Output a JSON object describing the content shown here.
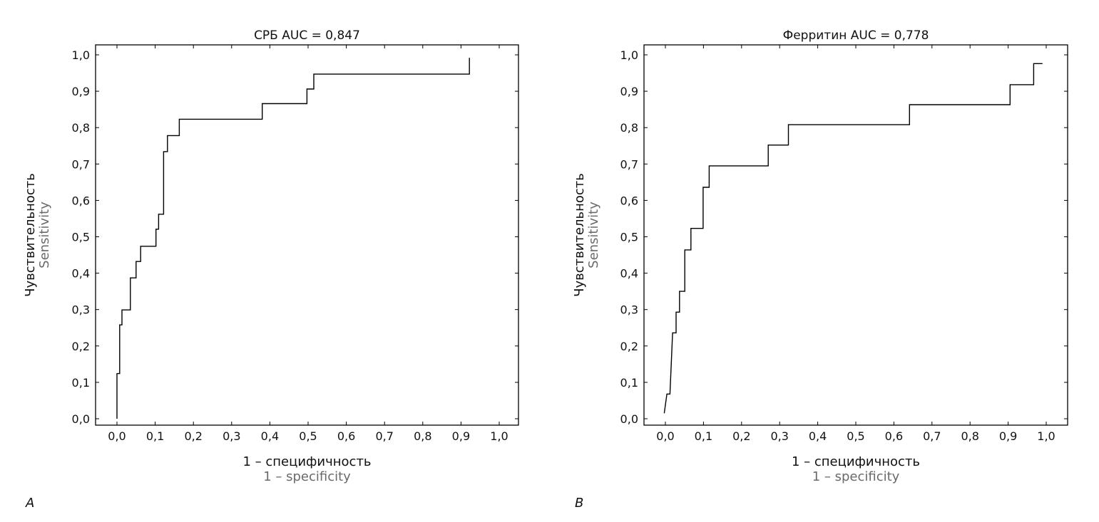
{
  "chart_data": [
    {
      "panel_label": "A",
      "type": "line",
      "title": "СРБ AUC = 0,847",
      "xlabel": "1 – специфичность",
      "xlabel_en": "1 – specificity",
      "ylabel": "Чувствительность",
      "ylabel_en": "Sensitivity",
      "xlim": [
        0,
        1
      ],
      "ylim": [
        0,
        1
      ],
      "xticks": [
        "0,0",
        "0,1",
        "0,2",
        "0,3",
        "0,4",
        "0,5",
        "0,6",
        "0,7",
        "0,8",
        "0,9",
        "1,0"
      ],
      "yticks": [
        "0,0",
        "0,1",
        "0,2",
        "0,3",
        "0,4",
        "0,5",
        "0,6",
        "0,7",
        "0,8",
        "0,9",
        "1,0"
      ],
      "grid": false,
      "series": [
        {
          "name": "СРБ",
          "points": [
            [
              0,
              0
            ],
            [
              0,
              0.124
            ],
            [
              0.007,
              0.124
            ],
            [
              0.007,
              0.258
            ],
            [
              0.013,
              0.258
            ],
            [
              0.013,
              0.299
            ],
            [
              0.035,
              0.299
            ],
            [
              0.035,
              0.387
            ],
            [
              0.05,
              0.387
            ],
            [
              0.05,
              0.432
            ],
            [
              0.062,
              0.432
            ],
            [
              0.062,
              0.474
            ],
            [
              0.102,
              0.474
            ],
            [
              0.102,
              0.521
            ],
            [
              0.109,
              0.521
            ],
            [
              0.109,
              0.562
            ],
            [
              0.122,
              0.562
            ],
            [
              0.122,
              0.734
            ],
            [
              0.132,
              0.734
            ],
            [
              0.132,
              0.778
            ],
            [
              0.163,
              0.778
            ],
            [
              0.163,
              0.823
            ],
            [
              0.38,
              0.823
            ],
            [
              0.38,
              0.866
            ],
            [
              0.497,
              0.866
            ],
            [
              0.497,
              0.906
            ],
            [
              0.515,
              0.906
            ],
            [
              0.515,
              0.947
            ],
            [
              0.922,
              0.947
            ],
            [
              0.922,
              0.992
            ]
          ]
        }
      ]
    },
    {
      "panel_label": "B",
      "type": "line",
      "title": "Ферритин AUC = 0,778",
      "xlabel": "1 – специфичность",
      "xlabel_en": "1 – specificity",
      "ylabel": "Чувствительность",
      "ylabel_en": "Sensitivity",
      "xlim": [
        0,
        1
      ],
      "ylim": [
        0,
        1
      ],
      "xticks": [
        "0,0",
        "0,1",
        "0,2",
        "0,3",
        "0,4",
        "0,5",
        "0,6",
        "0,7",
        "0,8",
        "0,9",
        "1,0"
      ],
      "yticks": [
        "0,0",
        "0,1",
        "0,2",
        "0,3",
        "0,4",
        "0,5",
        "0,6",
        "0,7",
        "0,8",
        "0,9",
        "1,0"
      ],
      "grid": false,
      "series": [
        {
          "name": "Ферритин",
          "points": [
            [
              -0.003,
              0.015
            ],
            [
              0.004,
              0.068
            ],
            [
              0.012,
              0.068
            ],
            [
              0.019,
              0.236
            ],
            [
              0.028,
              0.236
            ],
            [
              0.028,
              0.293
            ],
            [
              0.037,
              0.293
            ],
            [
              0.037,
              0.35
            ],
            [
              0.051,
              0.35
            ],
            [
              0.051,
              0.464
            ],
            [
              0.067,
              0.464
            ],
            [
              0.067,
              0.523
            ],
            [
              0.099,
              0.523
            ],
            [
              0.099,
              0.636
            ],
            [
              0.115,
              0.636
            ],
            [
              0.115,
              0.695
            ],
            [
              0.27,
              0.695
            ],
            [
              0.27,
              0.752
            ],
            [
              0.323,
              0.752
            ],
            [
              0.323,
              0.808
            ],
            [
              0.641,
              0.808
            ],
            [
              0.641,
              0.863
            ],
            [
              0.905,
              0.863
            ],
            [
              0.905,
              0.918
            ],
            [
              0.967,
              0.918
            ],
            [
              0.967,
              0.976
            ],
            [
              0.99,
              0.976
            ]
          ]
        }
      ]
    }
  ]
}
